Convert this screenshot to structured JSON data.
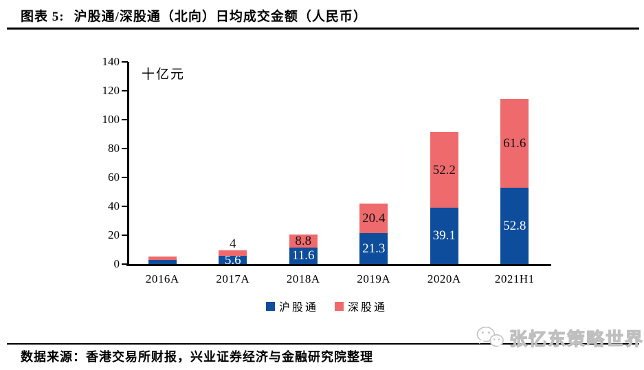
{
  "title": {
    "label": "图表 5:",
    "text": "沪股通/深股通（北向）日均成交金额（人民币）"
  },
  "chart_data": {
    "type": "bar",
    "stacked": true,
    "unit_label": "十亿元",
    "categories": [
      "2016A",
      "2017A",
      "2018A",
      "2019A",
      "2020A",
      "2021H1"
    ],
    "series": [
      {
        "key": "hugutong",
        "name": "沪股通",
        "color": "#0E4C9C",
        "label_color": "#FFFFFF",
        "values": [
          2.9,
          5.6,
          11.6,
          21.3,
          39.1,
          52.8
        ],
        "labels": [
          "",
          "5.6",
          "11.6",
          "21.3",
          "39.1",
          "52.8"
        ]
      },
      {
        "key": "shengutong",
        "name": "深股通",
        "color": "#EF6A6C",
        "label_color": "#111111",
        "values": [
          2.3,
          4.0,
          8.8,
          20.4,
          52.2,
          61.6
        ],
        "labels": [
          "",
          "4",
          "8.8",
          "20.4",
          "52.2",
          "61.6"
        ]
      }
    ],
    "ylim": [
      0,
      140
    ],
    "yticks": [
      0,
      20,
      40,
      60,
      80,
      100,
      120,
      140
    ],
    "grid": false,
    "legend_position": "bottom-center",
    "axis_color": "#000000"
  },
  "source": {
    "text": "数据来源：香港交易所财报，兴业证券经济与金融研究院整理"
  },
  "watermark": {
    "icon": "wechat-icon",
    "text": "张忆东策略世界"
  }
}
